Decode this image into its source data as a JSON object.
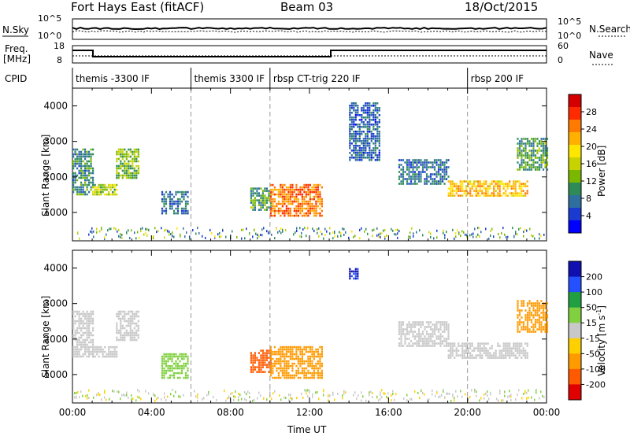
{
  "header": {
    "station": "Fort Hays East (fitACF)",
    "beam": "Beam 03",
    "date": "18/Oct/2015"
  },
  "top_panels": {
    "nsky_label": "N.Sky",
    "nsearch_label": "N.Search",
    "noise_ticks_left": [
      "10^5",
      "10^0"
    ],
    "noise_ticks_right": [
      "10^5",
      "10^0"
    ],
    "freq_label_1": "Freq.",
    "freq_label_2": "[MHz]",
    "freq_ticks": [
      "18",
      "8"
    ],
    "nave_ticks": [
      "60",
      "0"
    ],
    "nave_label": "Nave",
    "cpid_label": "CPID",
    "cpid_segments": [
      {
        "label": "themis -3300 IF",
        "start_h": 0
      },
      {
        "label": "themis 3300 IF",
        "start_h": 6
      },
      {
        "label": "rbsp CT-trig 220 IF",
        "start_h": 10
      },
      {
        "label": "rbsp 200 IF",
        "start_h": 20
      }
    ]
  },
  "power_colorbar": {
    "label": "Power [dB]",
    "ticks": [
      "28",
      "24",
      "20",
      "16",
      "12",
      "8",
      "4"
    ],
    "colors": [
      "#d40000",
      "#ff2a00",
      "#ff7a00",
      "#ffb000",
      "#ffe600",
      "#c8d200",
      "#7ab800",
      "#2e8b57",
      "#2f6fa0",
      "#1a3ad0",
      "#0000ff"
    ]
  },
  "velocity_colorbar": {
    "label": "Velocity [m s",
    "label_sup": "-1",
    "label_end": "]",
    "ticks": [
      "200",
      "100",
      "50",
      "15",
      "-15",
      "-50",
      "-100",
      "-200"
    ],
    "colors": [
      "#1010b0",
      "#2450ff",
      "#20a040",
      "#80d040",
      "#c8c8c8",
      "#ffd000",
      "#ff9a00",
      "#ff5a00",
      "#e00000"
    ]
  },
  "chart_data": [
    {
      "type": "heatmap",
      "title": "Power",
      "ylabel": "Slant Range [km]",
      "xlim": [
        0,
        24
      ],
      "ylim": [
        200,
        4500
      ],
      "yticks": [
        "4000",
        "3000",
        "2000",
        "1000"
      ],
      "regions": [
        {
          "x0": 0.0,
          "x1": 1.0,
          "y0": 1500,
          "y1": 2800,
          "level": 8
        },
        {
          "x0": 1.0,
          "x1": 2.2,
          "y0": 1500,
          "y1": 1800,
          "level": 14
        },
        {
          "x0": 2.2,
          "x1": 3.3,
          "y0": 2000,
          "y1": 2800,
          "level": 12
        },
        {
          "x0": 4.5,
          "x1": 5.8,
          "y0": 1000,
          "y1": 1600,
          "level": 6
        },
        {
          "x0": 9.0,
          "x1": 10.0,
          "y0": 1100,
          "y1": 1700,
          "level": 10
        },
        {
          "x0": 10.0,
          "x1": 12.6,
          "y0": 900,
          "y1": 1800,
          "level": 24
        },
        {
          "x0": 14.0,
          "x1": 15.5,
          "y0": 2500,
          "y1": 4100,
          "level": 5
        },
        {
          "x0": 16.5,
          "x1": 19.0,
          "y0": 1800,
          "y1": 2500,
          "level": 6
        },
        {
          "x0": 19.0,
          "x1": 23.0,
          "y0": 1500,
          "y1": 1900,
          "level": 20
        },
        {
          "x0": 22.5,
          "x1": 24.0,
          "y0": 2200,
          "y1": 3100,
          "level": 10
        }
      ]
    },
    {
      "type": "heatmap",
      "title": "Velocity",
      "ylabel": "Slant Range [km]",
      "xlabel": "Time UT",
      "xlim": [
        0,
        24
      ],
      "ylim": [
        200,
        4500
      ],
      "xticks": [
        "00:00",
        "04:00",
        "08:00",
        "12:00",
        "16:00",
        "20:00",
        "00:00"
      ],
      "yticks": [
        "4000",
        "3000",
        "2000",
        "1000"
      ],
      "regions": [
        {
          "x0": 0.0,
          "x1": 1.0,
          "y0": 1500,
          "y1": 2800,
          "value": 0
        },
        {
          "x0": 1.0,
          "x1": 2.2,
          "y0": 1500,
          "y1": 1800,
          "value": 0
        },
        {
          "x0": 2.2,
          "x1": 3.3,
          "y0": 2000,
          "y1": 2800,
          "value": 0
        },
        {
          "x0": 4.5,
          "x1": 5.8,
          "y0": 900,
          "y1": 1600,
          "value": 40
        },
        {
          "x0": 9.0,
          "x1": 10.0,
          "y0": 1100,
          "y1": 1700,
          "value": -120
        },
        {
          "x0": 10.0,
          "x1": 12.6,
          "y0": 900,
          "y1": 1800,
          "value": -80
        },
        {
          "x0": 14.0,
          "x1": 14.4,
          "y0": 3700,
          "y1": 4000,
          "value": 200
        },
        {
          "x0": 16.5,
          "x1": 19.0,
          "y0": 1800,
          "y1": 2500,
          "value": 0
        },
        {
          "x0": 19.0,
          "x1": 23.0,
          "y0": 1500,
          "y1": 1900,
          "value": 0
        },
        {
          "x0": 22.5,
          "x1": 24.0,
          "y0": 2200,
          "y1": 3100,
          "value": -60
        }
      ]
    }
  ]
}
